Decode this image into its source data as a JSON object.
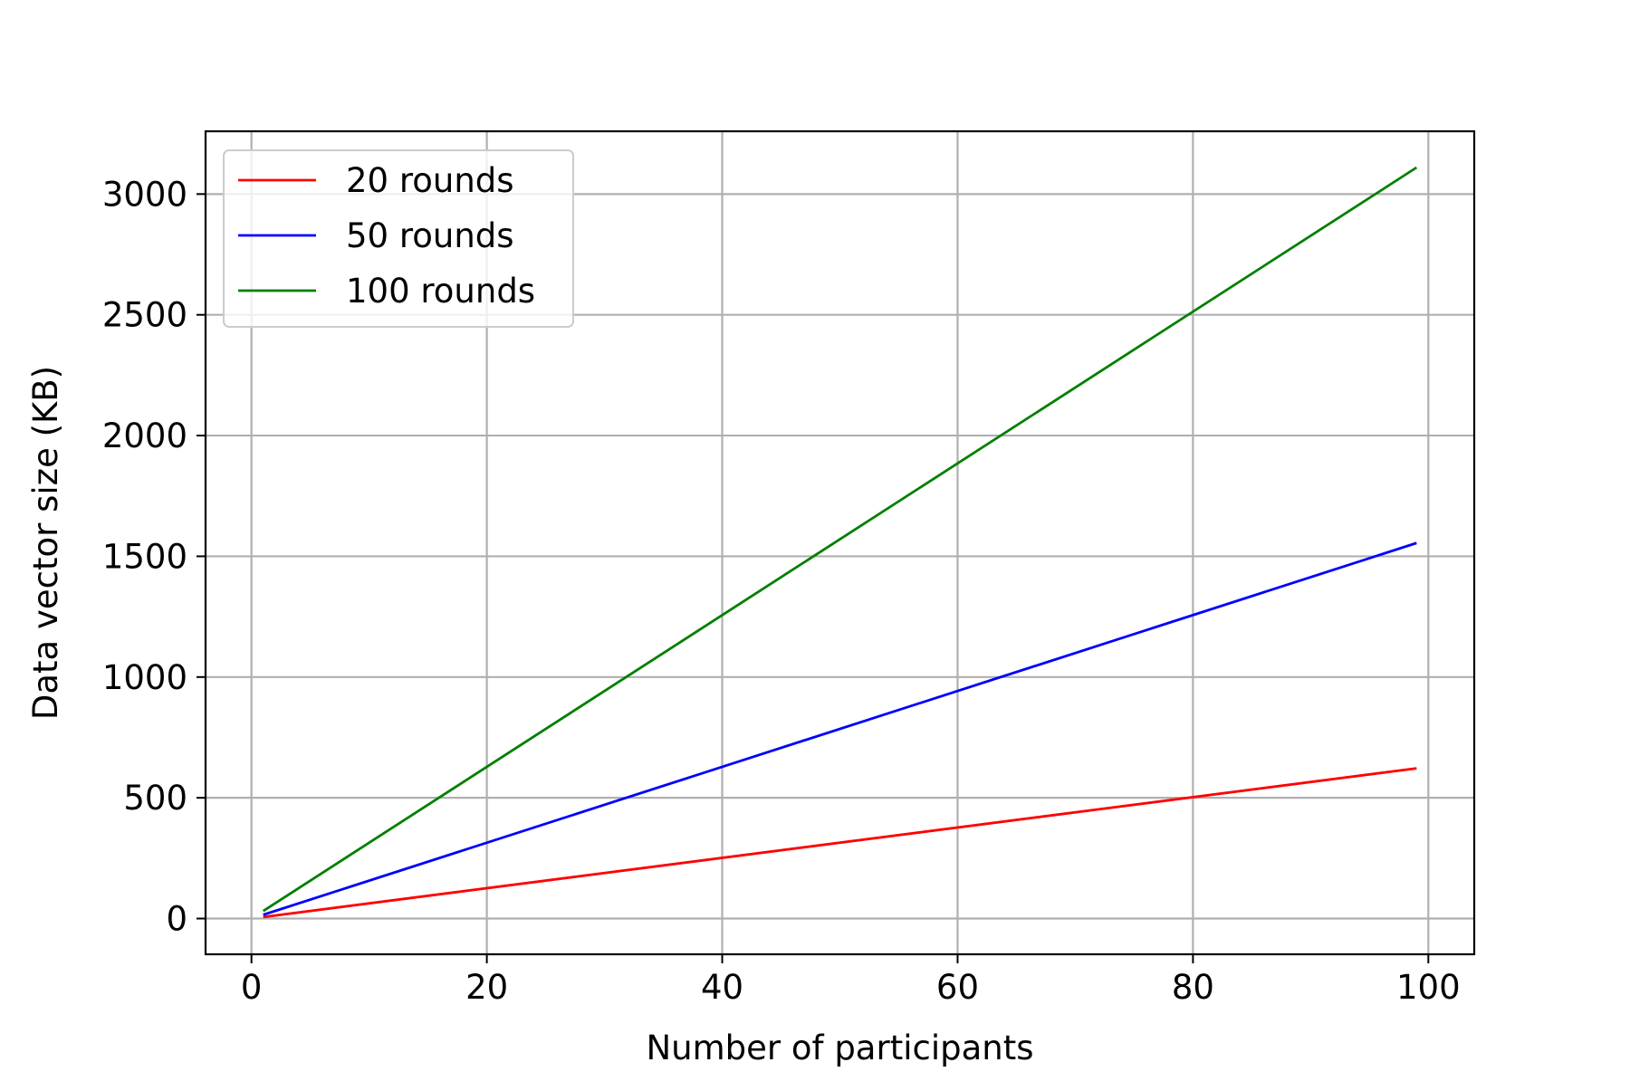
{
  "chart_data": {
    "type": "line",
    "title": "",
    "xlabel": "Number of participants",
    "ylabel": "Data vector size (KB)",
    "xlim": [
      -3.9,
      103.9
    ],
    "ylim": [
      -148,
      3260
    ],
    "xticks": [
      0,
      20,
      40,
      60,
      80,
      100
    ],
    "yticks": [
      0,
      500,
      1000,
      1500,
      2000,
      2500,
      3000
    ],
    "xtick_labels": [
      "0",
      "20",
      "40",
      "60",
      "80",
      "100"
    ],
    "ytick_labels": [
      "0",
      "500",
      "1000",
      "1500",
      "2000",
      "2500",
      "3000"
    ],
    "grid": true,
    "legend_position": "top-left",
    "series": [
      {
        "name": "20 rounds",
        "color": "#ff0000",
        "x": [
          1,
          99
        ],
        "y": [
          6.3,
          622
        ]
      },
      {
        "name": "50 rounds",
        "color": "#0000ff",
        "x": [
          1,
          99
        ],
        "y": [
          15.6,
          1555
        ]
      },
      {
        "name": "100 rounds",
        "color": "#008000",
        "x": [
          1,
          99
        ],
        "y": [
          31.3,
          3110
        ]
      }
    ]
  }
}
